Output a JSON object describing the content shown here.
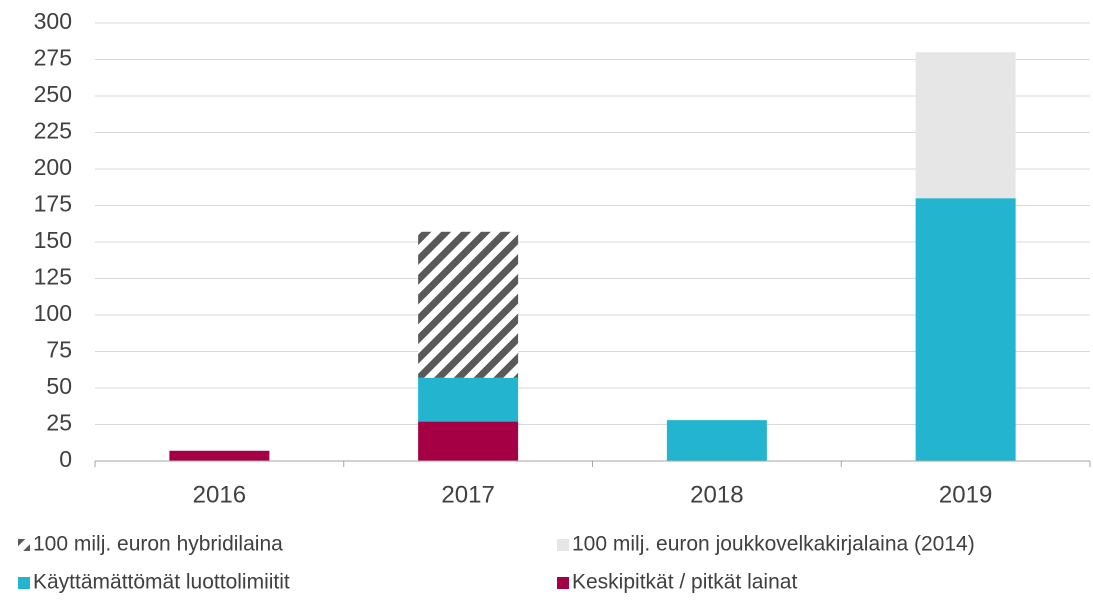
{
  "chart_data": {
    "type": "stacked_bar",
    "categories": [
      "2016",
      "2017",
      "2018",
      "2019"
    ],
    "series": [
      {
        "name": "100 milj. euron hybridilaina",
        "color": "#595959",
        "pattern": "hatch",
        "values": [
          null,
          100,
          null,
          null
        ]
      },
      {
        "name": "100 milj. euron joukkovelkakirjalaina (2014)",
        "color": "#e6e6e6",
        "values": [
          null,
          null,
          null,
          100
        ]
      },
      {
        "name": "Käyttämättömät luottolimiitit",
        "color": "#23b5d0",
        "values": [
          null,
          30,
          28,
          180
        ]
      },
      {
        "name": "Keskipitkät / pitkät lainat",
        "color": "#a50044",
        "values": [
          7,
          27,
          null,
          null
        ]
      }
    ],
    "ylim": [
      0,
      300
    ],
    "yticks": [
      0,
      25,
      50,
      75,
      100,
      125,
      150,
      175,
      200,
      225,
      250,
      275,
      300
    ],
    "grid": true
  }
}
